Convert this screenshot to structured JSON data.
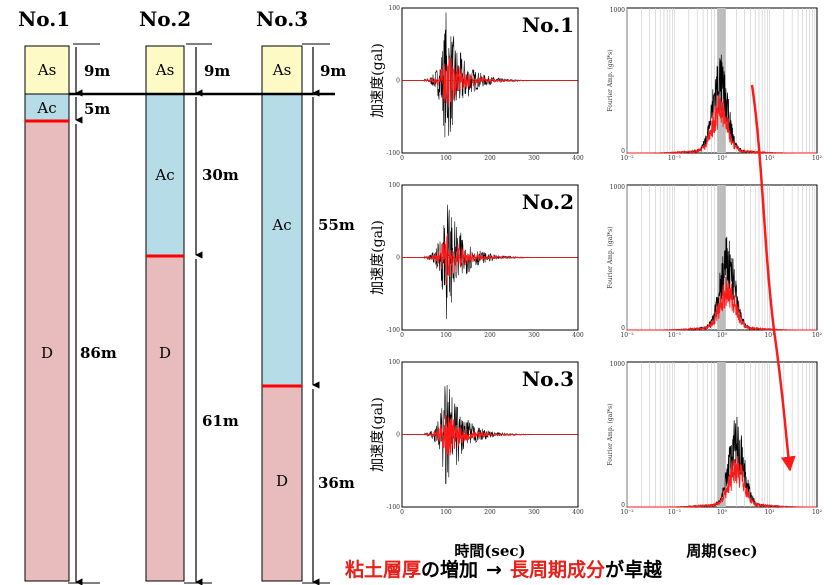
{
  "columns": [
    {
      "title": "No.1",
      "layers": [
        {
          "code": "As",
          "thickness_m": 9,
          "dim": "9m"
        },
        {
          "code": "Ac",
          "thickness_m": 5,
          "dim": "5m"
        },
        {
          "code": "D",
          "thickness_m": 86,
          "dim": "86m"
        }
      ]
    },
    {
      "title": "No.2",
      "layers": [
        {
          "code": "As",
          "thickness_m": 9,
          "dim": "9m"
        },
        {
          "code": "Ac",
          "thickness_m": 30,
          "dim": "30m"
        },
        {
          "code": "D",
          "thickness_m": 61,
          "dim": "61m"
        }
      ]
    },
    {
      "title": "No.3",
      "layers": [
        {
          "code": "As",
          "thickness_m": 9,
          "dim": "9m"
        },
        {
          "code": "Ac",
          "thickness_m": 55,
          "dim": "55m"
        },
        {
          "code": "D",
          "thickness_m": 36,
          "dim": "36m"
        }
      ]
    }
  ],
  "colors": {
    "As": "#fefac6",
    "Ac": "#b6dce7",
    "D": "#e8bcbc",
    "boundary": "#ff0000",
    "trace_black": "#000000",
    "trace_red": "#ff1a1a",
    "band": "#bbbbbb",
    "caption_red": "#e8201a"
  },
  "plots": {
    "rows": [
      {
        "label": "No.1"
      },
      {
        "label": "No.2"
      },
      {
        "label": "No.3"
      }
    ],
    "time_ylabel": "加速度(gal)",
    "time_xlabel": "時間(sec)",
    "spec_ylabel": "Fourier Amp. (gal*s)",
    "spec_xlabel": "周期(sec)",
    "time_xticks": [
      "0",
      "100",
      "200",
      "300",
      "400"
    ],
    "time_yticks": [
      "100",
      "0",
      "-100"
    ],
    "spec_xticks": [
      "10⁻²",
      "10⁻¹",
      "10⁰",
      "10¹",
      "10²"
    ],
    "spec_yticks": [
      "1000",
      "0"
    ]
  },
  "chart_data": [
    {
      "type": "line",
      "title": "No.1",
      "xlabel": "時間(sec)",
      "ylabel": "加速度(gal)",
      "xlim": [
        0,
        400
      ],
      "ylim": [
        -100,
        100
      ],
      "series": [
        {
          "onset_s": 100,
          "peak_gal": 100
        }
      ]
    },
    {
      "type": "line",
      "title": "No.2",
      "xlabel": "時間(sec)",
      "ylabel": "加速度(gal)",
      "xlim": [
        0,
        400
      ],
      "ylim": [
        -100,
        100
      ],
      "series": [
        {
          "onset_s": 100,
          "peak_gal": 90
        }
      ]
    },
    {
      "type": "line",
      "title": "No.3",
      "xlabel": "時間(sec)",
      "ylabel": "加速度(gal)",
      "xlim": [
        0,
        400
      ],
      "ylim": [
        -100,
        100
      ],
      "series": [
        {
          "onset_s": 100,
          "peak_gal": 85
        }
      ]
    },
    {
      "type": "line",
      "xlabel": "周期(sec)",
      "ylabel": "Fourier Amp. (gal*s)",
      "xscale": "log",
      "xlim": [
        0.01,
        100
      ],
      "ylim": [
        0,
        1000
      ],
      "series": [
        {
          "dominant_period_s": 0.9,
          "peak_amp": 680
        }
      ]
    },
    {
      "type": "line",
      "xlabel": "周期(sec)",
      "ylabel": "Fourier Amp. (gal*s)",
      "xscale": "log",
      "xlim": [
        0.01,
        100
      ],
      "ylim": [
        0,
        1000
      ],
      "series": [
        {
          "dominant_period_s": 1.3,
          "peak_amp": 640
        }
      ]
    },
    {
      "type": "line",
      "xlabel": "周期(sec)",
      "ylabel": "Fourier Amp. (gal*s)",
      "xscale": "log",
      "xlim": [
        0.01,
        100
      ],
      "ylim": [
        0,
        1000
      ],
      "series": [
        {
          "dominant_period_s": 2.0,
          "peak_amp": 620
        }
      ]
    }
  ],
  "caption": {
    "part1_red": "粘土層厚",
    "part2": "の増加",
    "arrow": "→",
    "part3_red": "長周期成分",
    "part4": "が卓越"
  }
}
